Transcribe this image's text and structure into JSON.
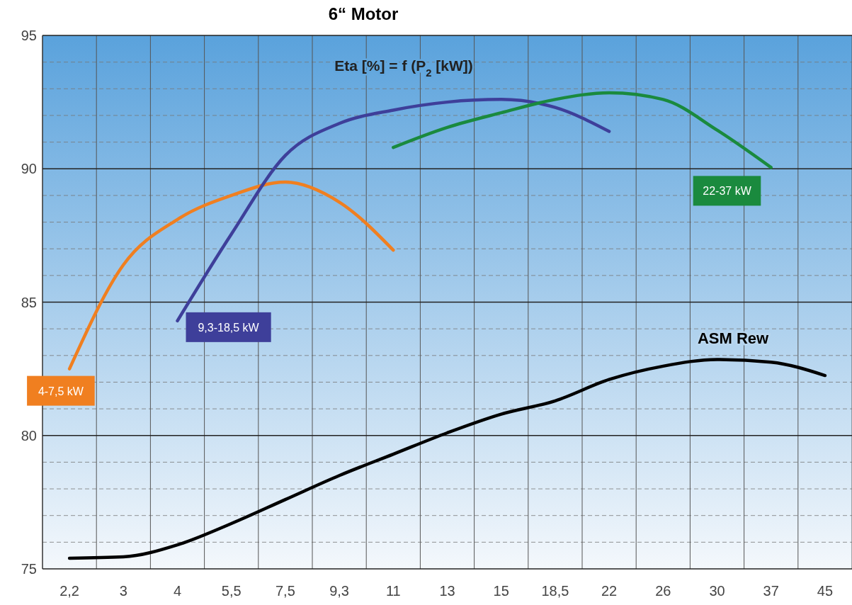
{
  "chart_data": {
    "type": "line",
    "title": "6“ Motor",
    "subtitle": "Eta [%] = f (P$_{2}$ [kW])",
    "categories": [
      "2,2",
      "3",
      "4",
      "5,5",
      "7,5",
      "9,3",
      "11",
      "13",
      "15",
      "18,5",
      "22",
      "26",
      "30",
      "37",
      "45"
    ],
    "ylim": [
      75,
      95
    ],
    "yticks": [
      75,
      80,
      85,
      90,
      95
    ],
    "grid": true,
    "marker": "none",
    "line_style": "solid",
    "series": [
      {
        "name": "4-7,5 kW",
        "color": "#f07f20",
        "values": [
          82.5,
          86.4,
          88.1,
          89.0,
          89.5,
          88.75,
          86.95,
          null,
          null,
          null,
          null,
          null,
          null,
          null,
          null
        ]
      },
      {
        "name": "9,3-18,5 kW",
        "color": "#3e3f9a",
        "values": [
          null,
          null,
          84.3,
          87.55,
          90.5,
          91.7,
          92.2,
          92.5,
          92.6,
          92.3,
          91.4,
          null,
          null,
          null,
          null
        ]
      },
      {
        "name": "22-37 kW",
        "color": "#1a8a3e",
        "values": [
          null,
          null,
          null,
          null,
          null,
          null,
          90.8,
          91.55,
          92.1,
          92.6,
          92.85,
          92.6,
          91.45,
          90.05,
          null
        ]
      },
      {
        "name": "ASM Rew",
        "color": "#000000",
        "values": [
          75.4,
          75.45,
          75.9,
          76.7,
          77.6,
          78.5,
          79.3,
          80.1,
          80.8,
          81.3,
          82.1,
          82.6,
          82.85,
          82.75,
          82.25
        ]
      }
    ]
  }
}
